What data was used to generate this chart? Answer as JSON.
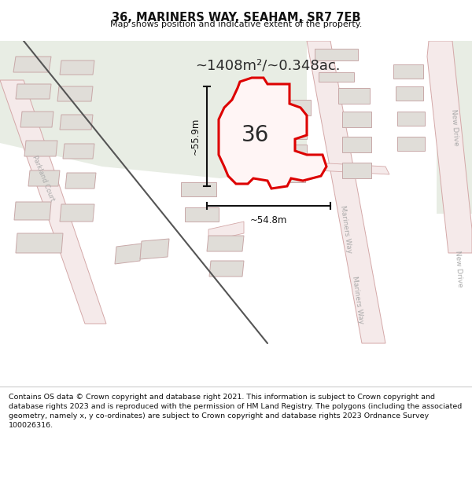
{
  "title": "36, MARINERS WAY, SEAHAM, SR7 7EB",
  "subtitle": "Map shows position and indicative extent of the property.",
  "area_text": "~1408m²/~0.348ac.",
  "dim_vertical": "~55.9m",
  "dim_horizontal": "~54.8m",
  "label_36": "36",
  "footer": "Contains OS data © Crown copyright and database right 2021. This information is subject to Crown copyright and database rights 2023 and is reproduced with the permission of HM Land Registry. The polygons (including the associated geometry, namely x, y co-ordinates) are subject to Crown copyright and database rights 2023 Ordnance Survey 100026316.",
  "map_bg": "#f0ede8",
  "green_color": "#e8ede4",
  "road_fill": "#f5eaea",
  "road_edge": "#d4a8a8",
  "building_fill": "#e0ddd8",
  "building_edge": "#c8a8a8",
  "highlight_fill": "#fff5f5",
  "highlight_edge": "#dd0000",
  "dim_color": "#111111",
  "label_color": "#2a2a2a",
  "road_label_color": "#aaaaaa",
  "title_color": "#111111",
  "footer_color": "#111111",
  "diagonal_path_color": "#888888",
  "bg_white": "#ffffff"
}
